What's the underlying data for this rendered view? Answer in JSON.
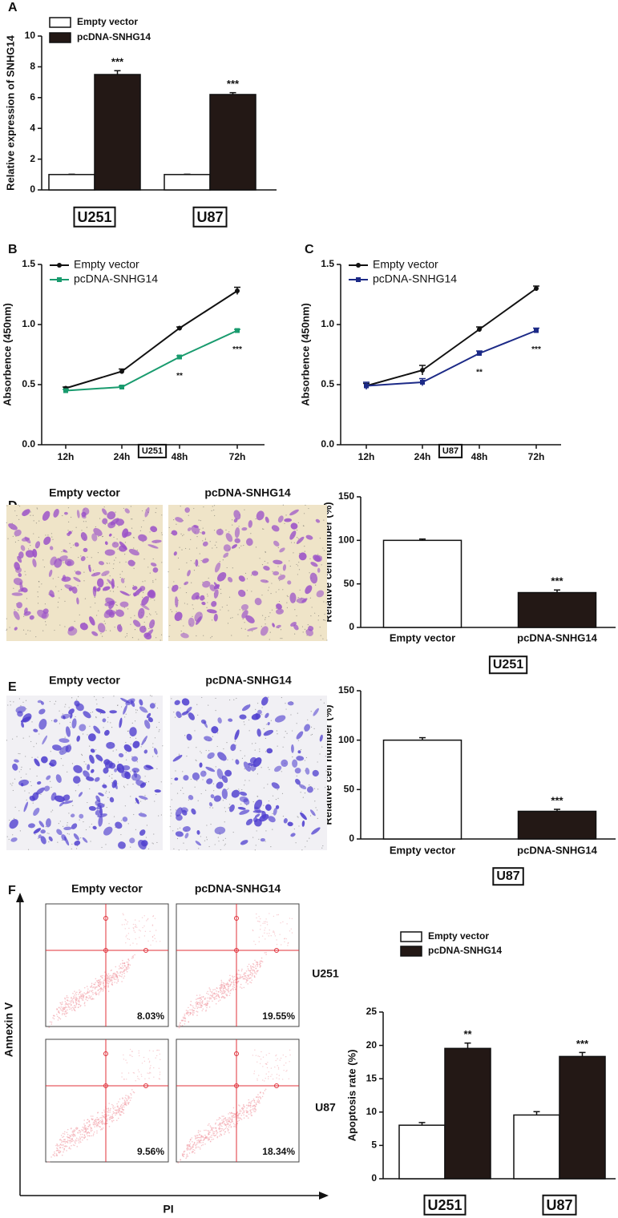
{
  "chart_data": [
    {
      "type": "bar",
      "panel": "A",
      "ylabel": "Relative expression of SNHG14",
      "categories": [
        "U251",
        "U87"
      ],
      "series": [
        {
          "name": "Empty vector",
          "color": "#ffffff",
          "values": [
            1.0,
            1.0
          ],
          "errors": [
            0.02,
            0.02
          ]
        },
        {
          "name": "pcDNA-SNHG14",
          "color": "#231815",
          "values": [
            7.5,
            6.2
          ],
          "errors": [
            0.25,
            0.12
          ],
          "significance": [
            "***",
            "***"
          ]
        }
      ],
      "ylim": [
        0,
        10
      ],
      "yticks": [
        0,
        2,
        4,
        6,
        8,
        10
      ]
    },
    {
      "type": "line",
      "panel": "B",
      "ylabel": "Absorbence (450nm)",
      "cell_line": "U251",
      "categories": [
        "12h",
        "24h",
        "48h",
        "72h"
      ],
      "series": [
        {
          "name": "Empty vector",
          "color": "#111111",
          "values": [
            0.47,
            0.61,
            0.97,
            1.28
          ],
          "errors": [
            0.01,
            0.02,
            0.01,
            0.03
          ]
        },
        {
          "name": "pcDNA-SNHG14",
          "color": "#199b6e",
          "values": [
            0.45,
            0.48,
            0.73,
            0.95
          ],
          "errors": [
            0.01,
            0.01,
            0.01,
            0.01
          ],
          "significance": [
            null,
            null,
            "**",
            "***"
          ]
        }
      ],
      "ylim": [
        0,
        1.5
      ],
      "yticks": [
        {
          "value": 0,
          "label": "0.0"
        },
        {
          "value": 0.5,
          "label": "0.5"
        },
        {
          "value": 1,
          "label": "1.0"
        },
        {
          "value": 1.5,
          "label": "1.5"
        }
      ]
    },
    {
      "type": "line",
      "panel": "C",
      "ylabel": "Absorbence (450nm)",
      "cell_line": "U87",
      "categories": [
        "12h",
        "24h",
        "48h",
        "72h"
      ],
      "series": [
        {
          "name": "Empty vector",
          "color": "#111111",
          "values": [
            0.49,
            0.62,
            0.96,
            1.3
          ],
          "errors": [
            0.02,
            0.04,
            0.02,
            0.02
          ]
        },
        {
          "name": "pcDNA-SNHG14",
          "color": "#1c2a87",
          "values": [
            0.49,
            0.52,
            0.76,
            0.95
          ],
          "errors": [
            0.03,
            0.03,
            0.02,
            0.02
          ],
          "significance": [
            null,
            null,
            "**",
            "***"
          ]
        }
      ],
      "ylim": [
        0,
        1.5
      ],
      "yticks": [
        {
          "value": 0,
          "label": "0.0"
        },
        {
          "value": 0.5,
          "label": "0.5"
        },
        {
          "value": 1,
          "label": "1.0"
        },
        {
          "value": 1.5,
          "label": "1.5"
        }
      ]
    },
    {
      "type": "bar",
      "panel": "D",
      "ylabel": "Relative cell number (%)",
      "cell_line": "U251",
      "image_titles": [
        "Empty vector",
        "pcDNA-SNHG14"
      ],
      "categories": [
        "Empty vector",
        "pcDNA-SNHG14"
      ],
      "values": [
        100,
        40
      ],
      "errors": [
        1.5,
        3
      ],
      "colors": [
        "#ffffff",
        "#231815"
      ],
      "significance": [
        null,
        "***"
      ],
      "ylim": [
        0,
        150
      ],
      "yticks": [
        0,
        50,
        100,
        150
      ]
    },
    {
      "type": "bar",
      "panel": "E",
      "ylabel": "Relative cell number (%)",
      "cell_line": "U87",
      "image_titles": [
        "Empty vector",
        "pcDNA-SNHG14"
      ],
      "categories": [
        "Empty vector",
        "pcDNA-SNHG14"
      ],
      "values": [
        100,
        28
      ],
      "errors": [
        2.5,
        2
      ],
      "colors": [
        "#ffffff",
        "#231815"
      ],
      "significance": [
        null,
        "***"
      ],
      "ylim": [
        0,
        150
      ],
      "yticks": [
        0,
        50,
        100,
        150
      ]
    },
    {
      "type": "bar",
      "panel": "F",
      "ylabel": "Apoptosis rate (%)",
      "categories": [
        "U251",
        "U87"
      ],
      "series": [
        {
          "name": "Empty vector",
          "color": "#ffffff",
          "values": [
            8.03,
            9.56
          ],
          "errors": [
            0.4,
            0.5
          ]
        },
        {
          "name": "pcDNA-SNHG14",
          "color": "#231815",
          "values": [
            19.55,
            18.34
          ],
          "errors": [
            0.8,
            0.6
          ],
          "significance": [
            "**",
            "***"
          ]
        }
      ],
      "ylim": [
        0,
        25
      ],
      "yticks": [
        0,
        5,
        10,
        15,
        20,
        25
      ],
      "flow_columns": [
        "Empty vector",
        "pcDNA-SNHG14"
      ],
      "flow_rows": [
        "U251",
        "U87"
      ],
      "flow_labels": [
        [
          "8.03%",
          "19.55%"
        ],
        [
          "9.56%",
          "18.34%"
        ]
      ],
      "flow_x_label": "PI",
      "flow_y_label": "Annexin V"
    }
  ]
}
